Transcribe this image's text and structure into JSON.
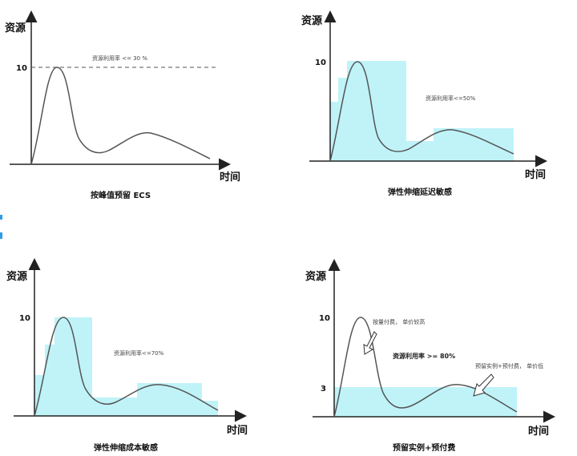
{
  "accent_color": "#2f9be8",
  "colors": {
    "capacity_fill": "#bff3f8",
    "curve": "#555555",
    "axis": "#222222"
  },
  "panels": [
    {
      "caption": "按峰值预留 ECS",
      "y_axis": "资源",
      "x_axis": "时间",
      "tick_10": "10",
      "note": "资源利用率 <= 30 %"
    },
    {
      "caption": "弹性伸缩延迟敏感",
      "y_axis": "资源",
      "x_axis": "时间",
      "tick_10": "10",
      "note": "资源利用率<=50%"
    },
    {
      "caption": "弹性伸缩成本敏感",
      "y_axis": "资源",
      "x_axis": "时间",
      "tick_10": "10",
      "note": "资源利用率<=70%"
    },
    {
      "caption": "预留实例+预付费",
      "y_axis": "资源",
      "x_axis": "时间",
      "tick_10": "10",
      "tick_3": "3",
      "note_ondemand": "按量付费， 单价较高",
      "note_util": "资源利用率 >= 80%",
      "note_reserved": "预留实例+预付费， 单价低"
    }
  ]
}
